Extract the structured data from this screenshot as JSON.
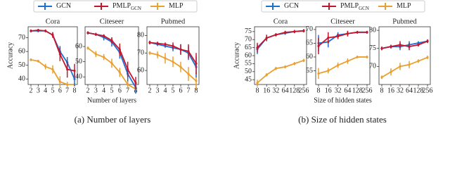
{
  "chart_data": [
    {
      "type": "line",
      "title": "Cora",
      "ylabel": "Accuracy",
      "categories": [
        "2",
        "3",
        "4",
        "5",
        "6",
        "7",
        "8"
      ],
      "ylim": [
        36,
        78
      ],
      "yticks": [
        40,
        50,
        60,
        70
      ],
      "series": [
        {
          "name": "GCN",
          "color": "#1f6fd1",
          "values": [
            75,
            75,
            75,
            72,
            60,
            52,
            40
          ],
          "errors": [
            1,
            1,
            1,
            2,
            4,
            4,
            5
          ]
        },
        {
          "name": "PMLP",
          "name_sub": "GCN",
          "color": "#c4172c",
          "values": [
            75,
            75.5,
            75,
            72,
            58,
            47,
            46
          ],
          "errors": [
            1,
            1,
            1,
            2,
            5,
            6,
            5
          ]
        },
        {
          "name": "MLP",
          "color": "#e8a030",
          "values": [
            54,
            53,
            49,
            47,
            38,
            36,
            36
          ],
          "errors": [
            1,
            1,
            2,
            3,
            4,
            2,
            1
          ]
        }
      ]
    },
    {
      "type": "line",
      "title": "Citeseer",
      "xlabel": "Number of layers",
      "categories": [
        "2",
        "3",
        "4",
        "5",
        "6",
        "7",
        "8"
      ],
      "ylim": [
        35,
        73
      ],
      "yticks": [
        40,
        50,
        60
      ],
      "series": [
        {
          "name": "GCN",
          "color": "#1f6fd1",
          "values": [
            69,
            68,
            66,
            63,
            56,
            42,
            33
          ],
          "errors": [
            1,
            1,
            2,
            3,
            4,
            5,
            4
          ]
        },
        {
          "name": "PMLP",
          "name_sub": "GCN",
          "color": "#c4172c",
          "values": [
            69,
            68,
            67,
            64,
            58,
            45,
            36
          ],
          "errors": [
            1,
            1,
            1,
            2,
            4,
            5,
            4
          ]
        },
        {
          "name": "MLP",
          "color": "#e8a030",
          "values": [
            59,
            55,
            53,
            49,
            43,
            35,
            32
          ],
          "errors": [
            1,
            2,
            2,
            3,
            3,
            3,
            2
          ]
        }
      ]
    },
    {
      "type": "line",
      "title": "Pubmed",
      "categories": [
        "2",
        "3",
        "4",
        "5",
        "6",
        "7",
        "8"
      ],
      "ylim": [
        52,
        85
      ],
      "yticks": [
        60,
        70,
        80
      ],
      "series": [
        {
          "name": "GCN",
          "color": "#1f6fd1",
          "values": [
            76,
            75,
            74,
            73,
            72,
            70,
            62
          ],
          "errors": [
            1,
            1,
            1,
            2,
            3,
            4,
            6
          ]
        },
        {
          "name": "PMLP",
          "name_sub": "GCN",
          "color": "#c4172c",
          "values": [
            76,
            75.5,
            75,
            74,
            72,
            71,
            64
          ],
          "errors": [
            1,
            1,
            1,
            2,
            3,
            4,
            6
          ]
        },
        {
          "name": "MLP",
          "color": "#e8a030",
          "values": [
            70,
            69,
            67,
            65,
            62,
            58,
            54
          ],
          "errors": [
            1,
            2,
            3,
            3,
            3,
            4,
            5
          ]
        }
      ]
    },
    {
      "type": "line",
      "title": "Cora",
      "ylabel": "Accuracy",
      "categories": [
        "8",
        "16",
        "32",
        "64",
        "128",
        "256"
      ],
      "ylim": [
        42,
        78
      ],
      "yticks": [
        45,
        50,
        55,
        60,
        65,
        70,
        75
      ],
      "series": [
        {
          "name": "GCN",
          "color": "#1f6fd1",
          "values": [
            64,
            71,
            73,
            74,
            75,
            75.5
          ],
          "errors": [
            3,
            2,
            1,
            1,
            1,
            1
          ]
        },
        {
          "name": "PMLP",
          "name_sub": "GCN",
          "color": "#c4172c",
          "values": [
            65,
            71,
            73,
            74.5,
            75,
            75.5
          ],
          "errors": [
            3,
            2,
            1,
            1,
            1,
            1
          ]
        },
        {
          "name": "MLP",
          "color": "#e8a030",
          "values": [
            43,
            48,
            52,
            53,
            55,
            57
          ],
          "errors": [
            2,
            1,
            1,
            1,
            1,
            1
          ]
        }
      ]
    },
    {
      "type": "line",
      "title": "Citeseer",
      "xlabel": "Size of hidden states",
      "categories": [
        "8",
        "16",
        "32",
        "64",
        "128",
        "256"
      ],
      "ylim": [
        50,
        71
      ],
      "yticks": [
        55,
        60,
        65,
        70
      ],
      "series": [
        {
          "name": "GCN",
          "color": "#1f6fd1",
          "values": [
            65,
            65.5,
            68,
            68.5,
            69,
            69
          ],
          "errors": [
            3,
            2,
            1,
            1,
            0.5,
            0.5
          ]
        },
        {
          "name": "PMLP",
          "name_sub": "GCN",
          "color": "#c4172c",
          "values": [
            64,
            67,
            67.5,
            68.5,
            69,
            69
          ],
          "errors": [
            3,
            2,
            1,
            1,
            0.5,
            0.5
          ]
        },
        {
          "name": "MLP",
          "color": "#e8a030",
          "values": [
            54,
            55,
            57,
            58.5,
            60,
            60
          ],
          "errors": [
            2,
            1,
            1,
            1,
            0.5,
            0.5
          ]
        }
      ]
    },
    {
      "type": "line",
      "title": "Pubmed",
      "categories": [
        "8",
        "16",
        "32",
        "64",
        "128",
        "256"
      ],
      "ylim": [
        65,
        81
      ],
      "yticks": [
        70,
        75,
        80
      ],
      "series": [
        {
          "name": "GCN",
          "color": "#1f6fd1",
          "values": [
            75,
            75.5,
            75.5,
            76,
            76.5,
            77
          ],
          "errors": [
            0.5,
            0.5,
            1,
            1,
            0.5,
            0.5
          ]
        },
        {
          "name": "PMLP",
          "name_sub": "GCN",
          "color": "#c4172c",
          "values": [
            75,
            75.5,
            76,
            75.5,
            76,
            77
          ],
          "errors": [
            0.5,
            0.5,
            1,
            1,
            0.5,
            0.5
          ]
        },
        {
          "name": "MLP",
          "color": "#e8a030",
          "values": [
            67,
            68.5,
            70,
            70.5,
            71.5,
            72.5
          ],
          "errors": [
            0.5,
            1,
            1,
            1,
            0.5,
            0.5
          ]
        }
      ]
    }
  ],
  "captions": [
    "(a)  Number of layers",
    "(b)  Size of hidden states"
  ]
}
